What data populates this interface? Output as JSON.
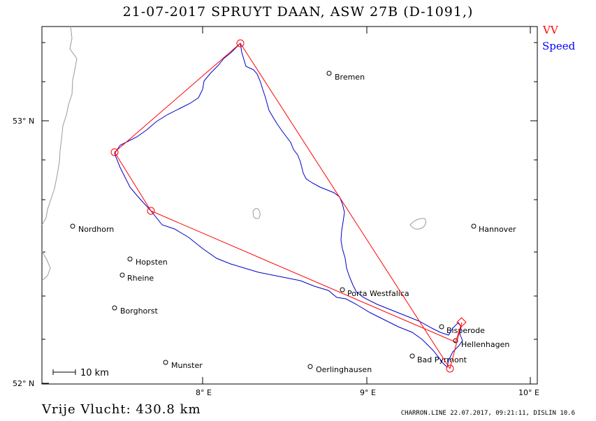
{
  "title": "21-07-2017   SPRUYT DAAN,   ASW 27B (D-1091,)",
  "legend": {
    "vv": "VV",
    "speed": "Speed"
  },
  "colors": {
    "route": "#ff0000",
    "track": "#0000c8",
    "coast": "#9a9a9a",
    "frame": "#000000"
  },
  "axes": {
    "y_labels": [
      "53° N",
      "52° N"
    ],
    "x_labels": [
      "8° E",
      "9° E",
      "10° E"
    ]
  },
  "scale_bar": "10 km",
  "cities": [
    {
      "name": "Bremen"
    },
    {
      "name": "Nordhorn"
    },
    {
      "name": "Hannover"
    },
    {
      "name": "Hopsten"
    },
    {
      "name": "Rheine"
    },
    {
      "name": "Borghorst"
    },
    {
      "name": "Porta Westfalica"
    },
    {
      "name": "Bisperode"
    },
    {
      "name": "Hellenhagen"
    },
    {
      "name": "Bad Pyrmont"
    },
    {
      "name": "Oerlinghausen"
    },
    {
      "name": "Munster"
    }
  ],
  "footer": {
    "distance": "Vrije Vlucht:  430.8 km",
    "meta": "CHARRON.LINE 22.07.2017, 09:21:11, DISLIN 10.6"
  }
}
